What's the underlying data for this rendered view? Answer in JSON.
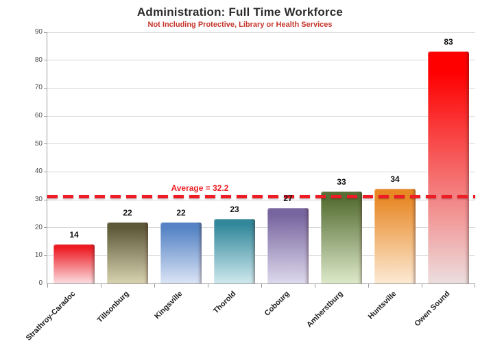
{
  "chart_data": {
    "type": "bar",
    "title": "Administration: Full Time Workforce",
    "subtitle": "Not Including Protective, Library or Health Services",
    "categories": [
      "Strathroy-Caradoc",
      "Tillsonburg",
      "Kingsville",
      "Thorold",
      "Cobourg",
      "Amherstburg",
      "Huntsville",
      "Owen Sound"
    ],
    "values": [
      14,
      22,
      22,
      23,
      27,
      33,
      34,
      83
    ],
    "bar_colors": [
      {
        "top": "#ed1c24",
        "bottom": "#fbdde0"
      },
      {
        "top": "#5e5a39",
        "bottom": "#d8d2b0"
      },
      {
        "top": "#5583c5",
        "bottom": "#dbe4f5"
      },
      {
        "top": "#32889b",
        "bottom": "#cfe9ee"
      },
      {
        "top": "#77659f",
        "bottom": "#ded9ec"
      },
      {
        "top": "#587036",
        "bottom": "#dde9ca"
      },
      {
        "top": "#e88825",
        "bottom": "#fcead4"
      },
      {
        "top": "#fe0000",
        "bottom": "#ecdede"
      }
    ],
    "average_label": "Average = 32.2",
    "average_value": 32.2,
    "average_line_draw_value": 31,
    "average_line_color": "#ee1c24",
    "xlabel": "",
    "ylabel": "",
    "ylim": [
      0,
      90
    ],
    "yticks": [
      0,
      10,
      20,
      30,
      40,
      50,
      60,
      70,
      80,
      90
    ],
    "grid": true,
    "legend": "none",
    "colors": {
      "title": "#2b2b2b",
      "subtitle": "#c5352c",
      "gridline": "#d9d9d9",
      "axis": "#9b9b9b",
      "value_label": "#111111"
    }
  }
}
